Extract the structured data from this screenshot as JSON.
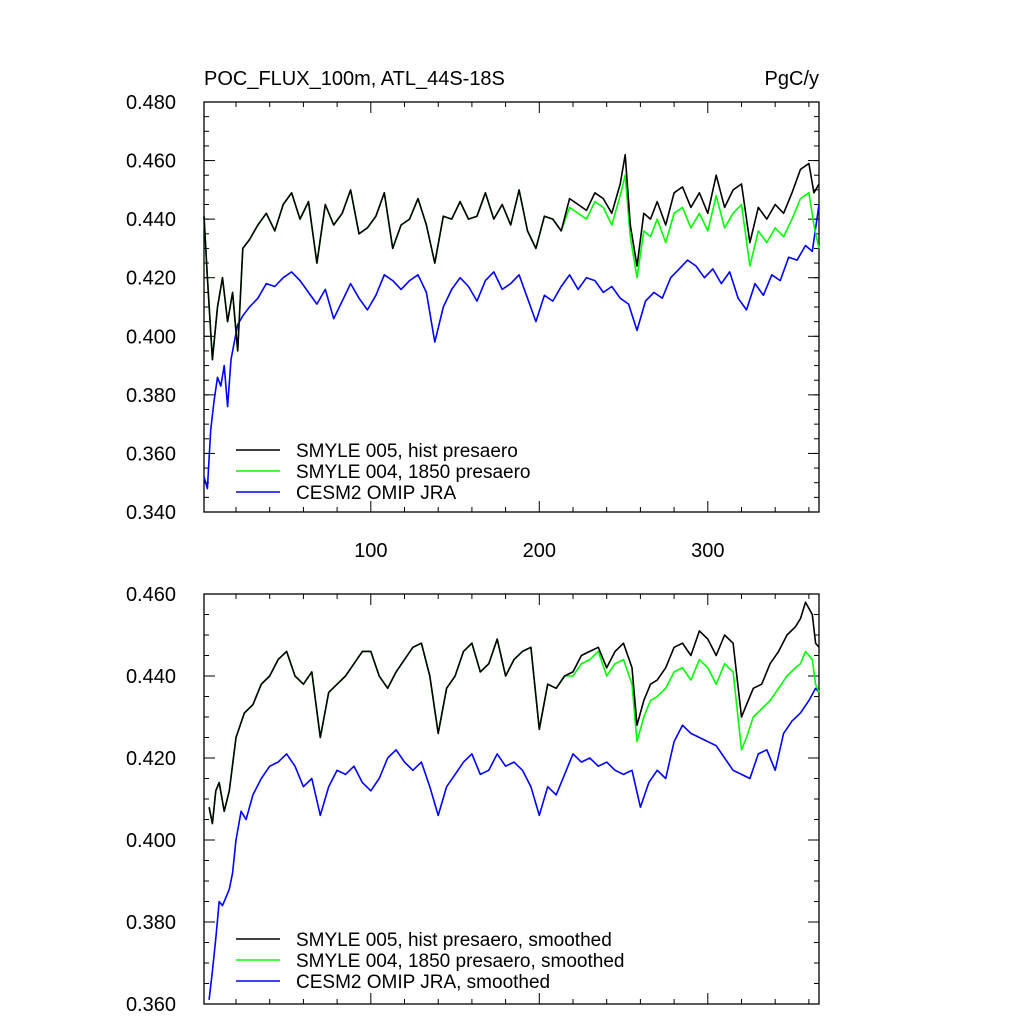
{
  "chart_data": [
    {
      "type": "line",
      "title": "POC_FLUX_100m, ATL_44S-18S",
      "units": "PgC/y",
      "xlim": [
        1,
        366
      ],
      "ylim": [
        0.34,
        0.48
      ],
      "x_ticks": [
        100,
        200,
        300
      ],
      "x_tick_labels": [
        "100",
        "200",
        "300"
      ],
      "y_ticks": [
        0.34,
        0.36,
        0.38,
        0.4,
        0.42,
        0.44,
        0.46,
        0.48
      ],
      "y_tick_labels": [
        "0.340",
        "0.360",
        "0.380",
        "0.400",
        "0.420",
        "0.440",
        "0.460",
        "0.480"
      ],
      "legend_position": "bottom-left",
      "series": [
        {
          "name": "SMYLE 005, hist presaero",
          "color": "#000000",
          "x": [
            1,
            3,
            6,
            9,
            12,
            15,
            18,
            21,
            24,
            28,
            33,
            38,
            43,
            48,
            53,
            58,
            63,
            68,
            73,
            78,
            83,
            88,
            93,
            98,
            103,
            108,
            113,
            118,
            123,
            128,
            133,
            138,
            143,
            148,
            153,
            158,
            163,
            168,
            173,
            178,
            183,
            188,
            193,
            198,
            203,
            208,
            213,
            218,
            223,
            228,
            233,
            238,
            243,
            248,
            251,
            254,
            258,
            262,
            266,
            270,
            275,
            280,
            285,
            290,
            295,
            300,
            305,
            310,
            315,
            320,
            325,
            330,
            335,
            340,
            345,
            350,
            355,
            360,
            363,
            366
          ],
          "y": [
            0.441,
            0.42,
            0.392,
            0.41,
            0.42,
            0.405,
            0.415,
            0.395,
            0.43,
            0.433,
            0.438,
            0.442,
            0.436,
            0.445,
            0.449,
            0.44,
            0.446,
            0.425,
            0.445,
            0.438,
            0.442,
            0.45,
            0.435,
            0.437,
            0.441,
            0.449,
            0.43,
            0.438,
            0.44,
            0.447,
            0.438,
            0.425,
            0.441,
            0.44,
            0.446,
            0.44,
            0.441,
            0.449,
            0.44,
            0.445,
            0.438,
            0.45,
            0.436,
            0.43,
            0.441,
            0.44,
            0.436,
            0.447,
            0.445,
            0.443,
            0.449,
            0.447,
            0.442,
            0.452,
            0.462,
            0.438,
            0.424,
            0.442,
            0.44,
            0.446,
            0.438,
            0.449,
            0.451,
            0.444,
            0.449,
            0.442,
            0.455,
            0.444,
            0.45,
            0.452,
            0.432,
            0.444,
            0.44,
            0.445,
            0.442,
            0.449,
            0.457,
            0.459,
            0.449,
            0.452
          ]
        },
        {
          "name": "SMYLE 004, 1850 presaero",
          "color": "#00ff00",
          "x": [
            1,
            3,
            6,
            9,
            12,
            15,
            18,
            21,
            24,
            28,
            33,
            38,
            43,
            48,
            53,
            58,
            63,
            68,
            73,
            78,
            83,
            88,
            93,
            98,
            103,
            108,
            113,
            118,
            123,
            128,
            133,
            138,
            143,
            148,
            153,
            158,
            163,
            168,
            173,
            178,
            183,
            188,
            193,
            198,
            203,
            208,
            213,
            218,
            223,
            228,
            233,
            238,
            243,
            248,
            251,
            254,
            258,
            262,
            266,
            270,
            275,
            280,
            285,
            290,
            295,
            300,
            305,
            310,
            315,
            320,
            325,
            330,
            335,
            340,
            345,
            350,
            355,
            360,
            363,
            366
          ],
          "y": [
            0.441,
            0.42,
            0.392,
            0.41,
            0.42,
            0.405,
            0.415,
            0.395,
            0.43,
            0.433,
            0.438,
            0.442,
            0.436,
            0.445,
            0.449,
            0.44,
            0.446,
            0.425,
            0.445,
            0.438,
            0.442,
            0.45,
            0.435,
            0.437,
            0.441,
            0.449,
            0.43,
            0.438,
            0.44,
            0.447,
            0.438,
            0.425,
            0.441,
            0.44,
            0.446,
            0.44,
            0.441,
            0.449,
            0.44,
            0.445,
            0.438,
            0.45,
            0.436,
            0.43,
            0.441,
            0.44,
            0.436,
            0.444,
            0.442,
            0.44,
            0.446,
            0.444,
            0.438,
            0.448,
            0.455,
            0.434,
            0.42,
            0.436,
            0.434,
            0.44,
            0.432,
            0.442,
            0.444,
            0.437,
            0.442,
            0.436,
            0.448,
            0.437,
            0.442,
            0.445,
            0.424,
            0.436,
            0.432,
            0.437,
            0.434,
            0.44,
            0.447,
            0.449,
            0.438,
            0.43
          ]
        },
        {
          "name": "CESM2 OMIP JRA",
          "color": "#0000ff",
          "x": [
            1,
            3,
            5,
            7,
            9,
            11,
            13,
            15,
            17,
            19,
            21,
            24,
            28,
            33,
            38,
            43,
            48,
            53,
            58,
            63,
            68,
            73,
            78,
            83,
            88,
            93,
            98,
            103,
            108,
            113,
            118,
            123,
            128,
            133,
            138,
            143,
            148,
            153,
            158,
            163,
            168,
            173,
            178,
            183,
            188,
            193,
            198,
            203,
            208,
            213,
            218,
            223,
            228,
            233,
            238,
            243,
            248,
            253,
            258,
            263,
            268,
            273,
            278,
            283,
            288,
            293,
            298,
            303,
            308,
            313,
            318,
            323,
            328,
            333,
            338,
            343,
            348,
            353,
            358,
            362,
            366
          ],
          "y": [
            0.352,
            0.348,
            0.368,
            0.378,
            0.386,
            0.383,
            0.39,
            0.376,
            0.392,
            0.398,
            0.404,
            0.407,
            0.41,
            0.413,
            0.418,
            0.417,
            0.42,
            0.422,
            0.419,
            0.415,
            0.411,
            0.416,
            0.406,
            0.412,
            0.418,
            0.413,
            0.409,
            0.414,
            0.421,
            0.419,
            0.416,
            0.419,
            0.421,
            0.415,
            0.398,
            0.41,
            0.416,
            0.42,
            0.417,
            0.412,
            0.419,
            0.422,
            0.416,
            0.418,
            0.421,
            0.413,
            0.405,
            0.414,
            0.412,
            0.417,
            0.421,
            0.416,
            0.42,
            0.419,
            0.415,
            0.417,
            0.413,
            0.411,
            0.402,
            0.412,
            0.415,
            0.413,
            0.42,
            0.423,
            0.426,
            0.424,
            0.42,
            0.423,
            0.418,
            0.422,
            0.413,
            0.409,
            0.418,
            0.414,
            0.421,
            0.419,
            0.427,
            0.426,
            0.431,
            0.429,
            0.445
          ]
        }
      ]
    },
    {
      "type": "line",
      "title": "",
      "xlim": [
        1,
        366
      ],
      "ylim": [
        0.36,
        0.46
      ],
      "x_ticks": [
        100,
        200,
        300
      ],
      "y_ticks": [
        0.36,
        0.38,
        0.4,
        0.42,
        0.44,
        0.46
      ],
      "y_tick_labels": [
        "0.360",
        "0.380",
        "0.400",
        "0.420",
        "0.440",
        "0.460"
      ],
      "legend_position": "bottom-left",
      "series": [
        {
          "name": "SMYLE 005, hist presaero, smoothed",
          "color": "#000000",
          "x": [
            4,
            6,
            8,
            10,
            13,
            16,
            20,
            25,
            30,
            35,
            40,
            45,
            50,
            55,
            60,
            65,
            70,
            75,
            80,
            85,
            90,
            95,
            100,
            105,
            110,
            115,
            120,
            125,
            130,
            135,
            140,
            145,
            150,
            155,
            160,
            165,
            170,
            175,
            180,
            185,
            190,
            195,
            200,
            205,
            210,
            215,
            220,
            225,
            230,
            235,
            240,
            245,
            250,
            255,
            258,
            262,
            266,
            270,
            275,
            280,
            285,
            290,
            295,
            300,
            305,
            310,
            315,
            320,
            323,
            327,
            332,
            337,
            342,
            347,
            352,
            355,
            358,
            362,
            364,
            366
          ],
          "y": [
            0.408,
            0.404,
            0.412,
            0.414,
            0.407,
            0.412,
            0.425,
            0.431,
            0.433,
            0.438,
            0.44,
            0.444,
            0.446,
            0.44,
            0.438,
            0.441,
            0.425,
            0.436,
            0.438,
            0.44,
            0.443,
            0.446,
            0.446,
            0.44,
            0.437,
            0.441,
            0.444,
            0.447,
            0.448,
            0.44,
            0.426,
            0.437,
            0.44,
            0.446,
            0.448,
            0.441,
            0.443,
            0.449,
            0.44,
            0.444,
            0.446,
            0.447,
            0.427,
            0.438,
            0.437,
            0.44,
            0.441,
            0.445,
            0.446,
            0.447,
            0.442,
            0.446,
            0.448,
            0.442,
            0.428,
            0.434,
            0.438,
            0.439,
            0.442,
            0.447,
            0.448,
            0.445,
            0.451,
            0.449,
            0.445,
            0.45,
            0.448,
            0.43,
            0.433,
            0.437,
            0.438,
            0.443,
            0.446,
            0.45,
            0.452,
            0.454,
            0.458,
            0.455,
            0.448,
            0.447
          ]
        },
        {
          "name": "SMYLE 004, 1850 presaero, smoothed",
          "color": "#00ff00",
          "x": [
            4,
            6,
            8,
            10,
            13,
            16,
            20,
            25,
            30,
            35,
            40,
            45,
            50,
            55,
            60,
            65,
            70,
            75,
            80,
            85,
            90,
            95,
            100,
            105,
            110,
            115,
            120,
            125,
            130,
            135,
            140,
            145,
            150,
            155,
            160,
            165,
            170,
            175,
            180,
            185,
            190,
            195,
            200,
            205,
            210,
            215,
            220,
            225,
            230,
            235,
            240,
            245,
            250,
            255,
            258,
            262,
            266,
            270,
            275,
            280,
            285,
            290,
            295,
            300,
            305,
            310,
            315,
            320,
            323,
            327,
            332,
            337,
            342,
            347,
            352,
            355,
            358,
            362,
            364,
            366
          ],
          "y": [
            0.408,
            0.404,
            0.412,
            0.414,
            0.407,
            0.412,
            0.425,
            0.431,
            0.433,
            0.438,
            0.44,
            0.444,
            0.446,
            0.44,
            0.438,
            0.441,
            0.425,
            0.436,
            0.438,
            0.44,
            0.443,
            0.446,
            0.446,
            0.44,
            0.437,
            0.441,
            0.444,
            0.447,
            0.448,
            0.44,
            0.426,
            0.437,
            0.44,
            0.446,
            0.448,
            0.441,
            0.443,
            0.449,
            0.44,
            0.444,
            0.446,
            0.447,
            0.427,
            0.438,
            0.437,
            0.44,
            0.44,
            0.443,
            0.444,
            0.446,
            0.44,
            0.443,
            0.444,
            0.438,
            0.424,
            0.43,
            0.434,
            0.435,
            0.437,
            0.441,
            0.442,
            0.439,
            0.444,
            0.442,
            0.438,
            0.443,
            0.441,
            0.422,
            0.425,
            0.43,
            0.432,
            0.434,
            0.437,
            0.44,
            0.442,
            0.443,
            0.446,
            0.444,
            0.438,
            0.436
          ]
        },
        {
          "name": "CESM2 OMIP JRA, smoothed",
          "color": "#0000ff",
          "x": [
            4,
            6,
            8,
            10,
            12,
            14,
            16,
            18,
            20,
            23,
            26,
            30,
            35,
            40,
            45,
            50,
            55,
            60,
            65,
            70,
            75,
            80,
            85,
            90,
            95,
            100,
            105,
            110,
            115,
            120,
            125,
            130,
            135,
            140,
            145,
            150,
            155,
            160,
            165,
            170,
            175,
            180,
            185,
            190,
            195,
            200,
            205,
            210,
            215,
            220,
            225,
            230,
            235,
            240,
            245,
            250,
            255,
            260,
            265,
            270,
            275,
            280,
            285,
            290,
            295,
            300,
            305,
            310,
            315,
            320,
            325,
            330,
            335,
            340,
            345,
            350,
            355,
            360,
            364,
            366
          ],
          "y": [
            0.361,
            0.368,
            0.376,
            0.385,
            0.384,
            0.386,
            0.388,
            0.392,
            0.4,
            0.407,
            0.405,
            0.411,
            0.415,
            0.418,
            0.419,
            0.421,
            0.418,
            0.413,
            0.415,
            0.406,
            0.413,
            0.417,
            0.416,
            0.418,
            0.414,
            0.412,
            0.415,
            0.42,
            0.422,
            0.419,
            0.417,
            0.419,
            0.413,
            0.406,
            0.413,
            0.416,
            0.419,
            0.421,
            0.416,
            0.417,
            0.421,
            0.418,
            0.419,
            0.417,
            0.413,
            0.406,
            0.413,
            0.411,
            0.416,
            0.421,
            0.419,
            0.42,
            0.418,
            0.419,
            0.417,
            0.416,
            0.417,
            0.408,
            0.414,
            0.417,
            0.415,
            0.424,
            0.428,
            0.426,
            0.425,
            0.424,
            0.423,
            0.42,
            0.417,
            0.416,
            0.415,
            0.421,
            0.422,
            0.417,
            0.426,
            0.429,
            0.431,
            0.434,
            0.437,
            0.436
          ]
        }
      ]
    }
  ]
}
